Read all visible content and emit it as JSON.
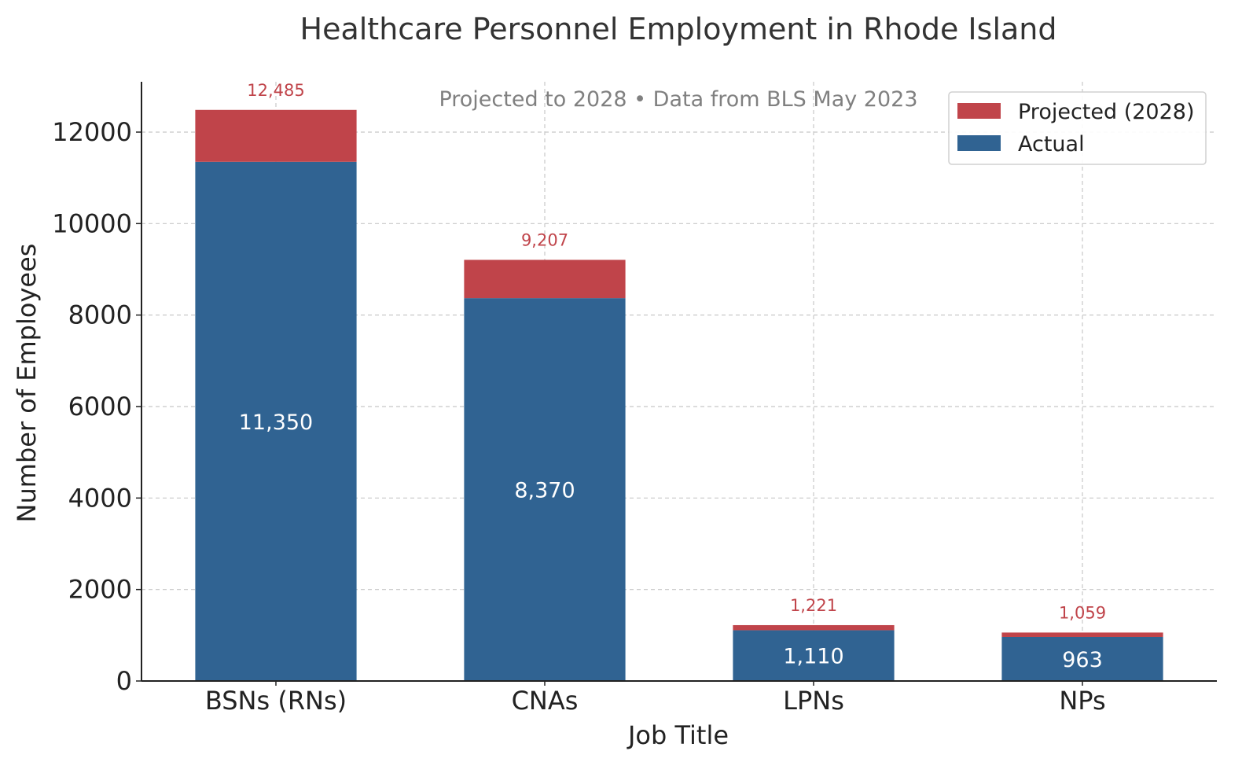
{
  "chart_data": {
    "type": "bar",
    "stacked": true,
    "title": "Healthcare Personnel Employment in Rhode Island",
    "subtitle": "Projected to 2028 • Data from BLS May 2023",
    "xlabel": "Job Title",
    "ylabel": "Number of Employees",
    "categories": [
      "BSNs (RNs)",
      "CNAs",
      "LPNs",
      "NPs"
    ],
    "series": [
      {
        "name": "Actual",
        "values": [
          11350,
          8370,
          1110,
          963
        ],
        "labels": [
          "11,350",
          "8,370",
          "1,110",
          "963"
        ],
        "color": "#306392"
      },
      {
        "name": "Projected (2028)",
        "values": [
          1135,
          837,
          111,
          96
        ],
        "color": "#c0444a"
      }
    ],
    "totals": [
      12485,
      9207,
      1221,
      1059
    ],
    "total_labels": [
      "12,485",
      "9,207",
      "1,221",
      "1,059"
    ],
    "total_label_color": "#c0444a",
    "ylim": [
      0,
      13100
    ],
    "yticks": [
      0,
      2000,
      4000,
      6000,
      8000,
      10000,
      12000
    ],
    "ytick_labels": [
      "0",
      "2000",
      "4000",
      "6000",
      "8000",
      "10000",
      "12000"
    ],
    "grid": true,
    "legend": {
      "placement": "top-right",
      "entries": [
        {
          "name": "Projected (2028)",
          "color": "#c0444a"
        },
        {
          "name": "Actual",
          "color": "#306392"
        }
      ]
    }
  }
}
